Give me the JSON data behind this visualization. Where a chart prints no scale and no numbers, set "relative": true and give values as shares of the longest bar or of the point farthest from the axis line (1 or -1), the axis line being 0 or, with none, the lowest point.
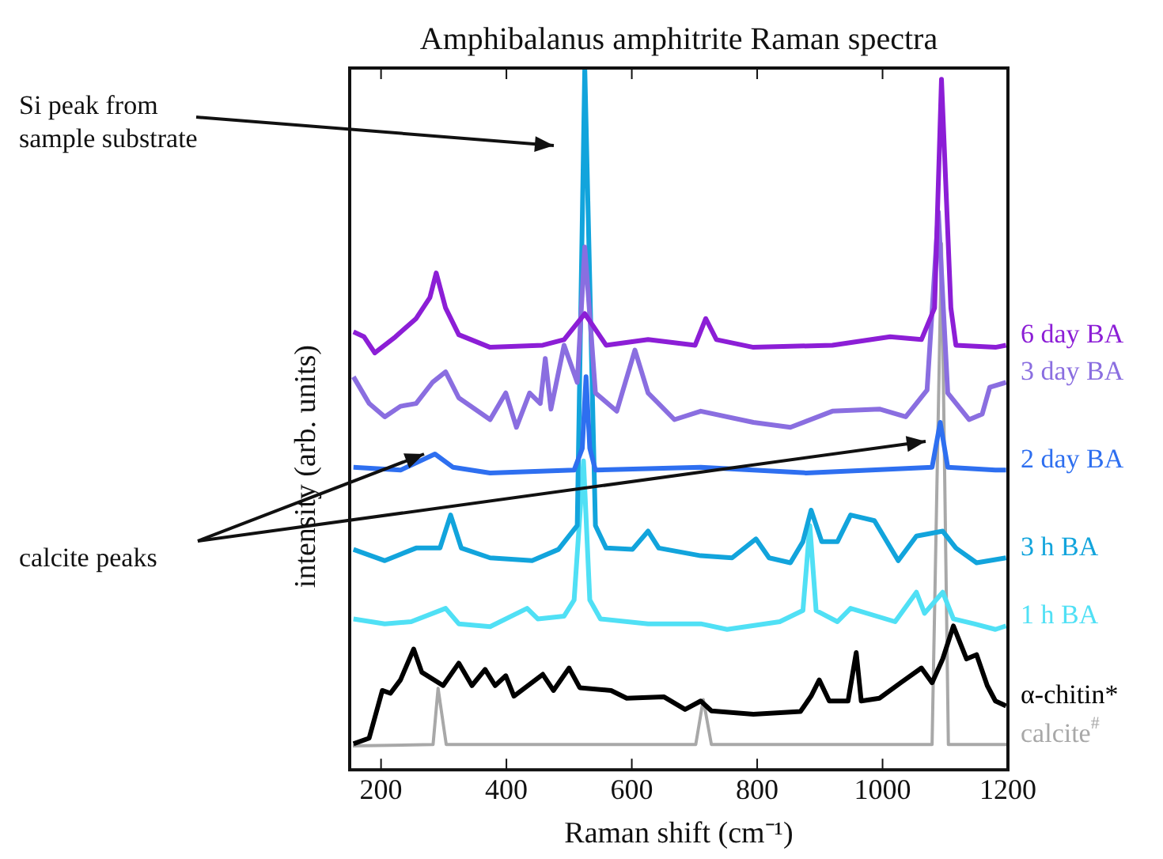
{
  "chart_data": {
    "type": "line",
    "title": "Amphibalanus amphitrite Raman spectra",
    "xlabel": "Raman shift (cm⁻¹)",
    "ylabel": "intensity (arb. units)",
    "relative": true,
    "xlim": [
      150,
      1200
    ],
    "xticks": [
      200,
      400,
      600,
      800,
      1000,
      1200
    ],
    "grid": false,
    "legend": false,
    "marker": "none",
    "line_style": "solid",
    "annotations": [
      "Si peak from\nsample substrate",
      "calcite peaks"
    ],
    "series": [
      {
        "name": "calcite$^{#}$",
        "color": "#a8a8a8",
        "x": [
          155,
          283,
          291,
          304,
          702,
          714,
          727,
          1079,
          1094,
          1105,
          1198
        ],
        "values": [
          0.034,
          0.036,
          0.116,
          0.036,
          0.036,
          0.1,
          0.036,
          0.036,
          0.75,
          0.036,
          0.036
        ]
      },
      {
        "name": "α-chitin*",
        "color": "#000000",
        "x": [
          156,
          181,
          202,
          215,
          231,
          252,
          265,
          299,
          324,
          345,
          366,
          382,
          399,
          412,
          458,
          475,
          500,
          517,
          567,
          592,
          651,
          685,
          710,
          727,
          794,
          869,
          886,
          899,
          915,
          945,
          958,
          966,
          995,
          1029,
          1062,
          1079,
          1096,
          1113,
          1134,
          1150,
          1167,
          1180,
          1197
        ],
        "values": [
          0.037,
          0.045,
          0.113,
          0.109,
          0.128,
          0.172,
          0.139,
          0.12,
          0.152,
          0.12,
          0.143,
          0.12,
          0.134,
          0.105,
          0.136,
          0.113,
          0.145,
          0.117,
          0.113,
          0.102,
          0.104,
          0.086,
          0.098,
          0.084,
          0.079,
          0.083,
          0.105,
          0.128,
          0.098,
          0.098,
          0.167,
          0.098,
          0.102,
          0.124,
          0.145,
          0.124,
          0.158,
          0.205,
          0.158,
          0.164,
          0.12,
          0.098,
          0.091
        ]
      },
      {
        "name": "1 h BA",
        "color": "#50e0f5",
        "x": [
          156,
          206,
          248,
          303,
          324,
          374,
          433,
          450,
          492,
          508,
          523,
          533,
          550,
          626,
          710,
          752,
          836,
          873,
          884,
          894,
          928,
          949,
          1020,
          1054,
          1067,
          1096,
          1113,
          1146,
          1180,
          1197
        ],
        "values": [
          0.215,
          0.208,
          0.211,
          0.23,
          0.208,
          0.204,
          0.23,
          0.215,
          0.219,
          0.242,
          0.44,
          0.242,
          0.215,
          0.208,
          0.208,
          0.2,
          0.211,
          0.227,
          0.348,
          0.227,
          0.211,
          0.23,
          0.211,
          0.253,
          0.223,
          0.253,
          0.215,
          0.208,
          0.2,
          0.205
        ]
      },
      {
        "name": "3 h BA",
        "color": "#12a4dc",
        "x": [
          156,
          206,
          256,
          294,
          311,
          328,
          374,
          441,
          483,
          513,
          525,
          542,
          559,
          601,
          626,
          643,
          710,
          760,
          798,
          819,
          853,
          873,
          886,
          903,
          928,
          949,
          987,
          1025,
          1054,
          1096,
          1117,
          1150,
          1197
        ],
        "values": [
          0.314,
          0.298,
          0.316,
          0.316,
          0.363,
          0.316,
          0.302,
          0.298,
          0.314,
          0.348,
          1,
          0.348,
          0.316,
          0.314,
          0.34,
          0.316,
          0.305,
          0.302,
          0.329,
          0.302,
          0.295,
          0.325,
          0.37,
          0.325,
          0.325,
          0.363,
          0.355,
          0.298,
          0.333,
          0.34,
          0.316,
          0.295,
          0.302
        ]
      },
      {
        "name": "2 day BA",
        "color": "#2e6ff0",
        "x": [
          156,
          231,
          286,
          315,
          374,
          508,
          521,
          527,
          533,
          542,
          710,
          878,
          1079,
          1092,
          1104,
          1180,
          1197
        ],
        "values": [
          0.431,
          0.427,
          0.45,
          0.431,
          0.423,
          0.427,
          0.458,
          0.56,
          0.458,
          0.427,
          0.431,
          0.423,
          0.431,
          0.495,
          0.431,
          0.427,
          0.427
        ]
      },
      {
        "name": "3 day BA",
        "color": "#8a6ee0",
        "x": [
          156,
          181,
          206,
          231,
          256,
          282,
          303,
          324,
          374,
          399,
          416,
          437,
          454,
          462,
          471,
          492,
          513,
          525,
          542,
          576,
          605,
          626,
          668,
          710,
          794,
          853,
          920,
          995,
          1037,
          1071,
          1089,
          1104,
          1138,
          1159,
          1171,
          1197
        ],
        "values": [
          0.56,
          0.522,
          0.503,
          0.518,
          0.522,
          0.552,
          0.567,
          0.53,
          0.499,
          0.537,
          0.488,
          0.537,
          0.522,
          0.586,
          0.514,
          0.605,
          0.552,
          0.745,
          0.537,
          0.511,
          0.598,
          0.537,
          0.499,
          0.511,
          0.495,
          0.488,
          0.511,
          0.514,
          0.503,
          0.541,
          0.795,
          0.537,
          0.499,
          0.507,
          0.545,
          0.552
        ]
      },
      {
        "name": "6 day BA",
        "color": "#8c1ed6",
        "x": [
          156,
          173,
          190,
          223,
          256,
          278,
          288,
          303,
          324,
          374,
          458,
          492,
          525,
          559,
          626,
          701,
          718,
          735,
          794,
          920,
          1012,
          1062,
          1083,
          1094,
          1109,
          1117,
          1180,
          1197
        ],
        "values": [
          0.624,
          0.617,
          0.594,
          0.617,
          0.643,
          0.673,
          0.708,
          0.658,
          0.62,
          0.602,
          0.605,
          0.613,
          0.65,
          0.605,
          0.613,
          0.605,
          0.643,
          0.613,
          0.602,
          0.605,
          0.617,
          0.613,
          0.658,
          0.984,
          0.658,
          0.605,
          0.602,
          0.605
        ]
      }
    ]
  }
}
